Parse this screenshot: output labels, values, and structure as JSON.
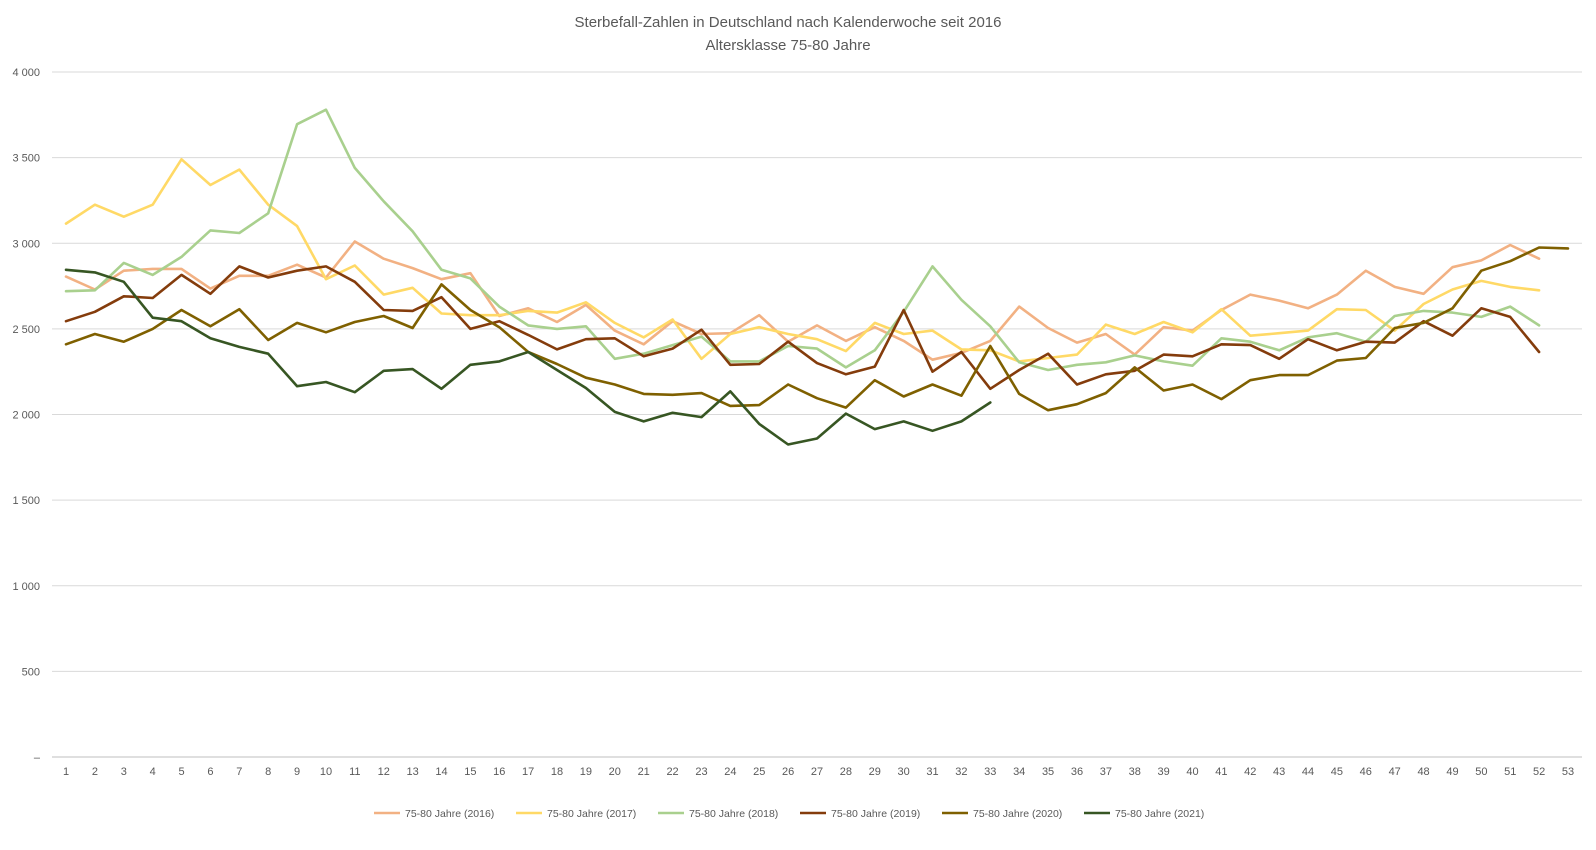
{
  "chart_data": {
    "type": "line",
    "title": "Sterbefall-Zahlen in Deutschland nach Kalenderwoche seit 2016",
    "subtitle": "Altersklasse 75-80 Jahre",
    "xlabel": "",
    "ylabel": "",
    "x": [
      1,
      2,
      3,
      4,
      5,
      6,
      7,
      8,
      9,
      10,
      11,
      12,
      13,
      14,
      15,
      16,
      17,
      18,
      19,
      20,
      21,
      22,
      23,
      24,
      25,
      26,
      27,
      28,
      29,
      30,
      31,
      32,
      33,
      34,
      35,
      36,
      37,
      38,
      39,
      40,
      41,
      42,
      43,
      44,
      45,
      46,
      47,
      48,
      49,
      50,
      51,
      52,
      53
    ],
    "ylim": [
      0,
      4000
    ],
    "yticks": [
      {
        "value": 0,
        "label": "–"
      },
      {
        "value": 500,
        "label": "500"
      },
      {
        "value": 1000,
        "label": "1 000"
      },
      {
        "value": 1500,
        "label": "1 500"
      },
      {
        "value": 2000,
        "label": "2 000"
      },
      {
        "value": 2500,
        "label": "2 500"
      },
      {
        "value": 3000,
        "label": "3 000"
      },
      {
        "value": 3500,
        "label": "3 500"
      },
      {
        "value": 4000,
        "label": "4 000"
      }
    ],
    "grid": true,
    "legend_position": "bottom",
    "series": [
      {
        "name": "75-80 Jahre (2016)",
        "color": "#f2b183",
        "values": [
          2805,
          2730,
          2840,
          2850,
          2850,
          2735,
          2810,
          2810,
          2875,
          2800,
          3010,
          2910,
          2855,
          2790,
          2825,
          2575,
          2620,
          2540,
          2640,
          2490,
          2410,
          2545,
          2470,
          2475,
          2580,
          2425,
          2520,
          2430,
          2510,
          2430,
          2320,
          2360,
          2430,
          2630,
          2505,
          2420,
          2470,
          2350,
          2510,
          2490,
          2610,
          2700,
          2665,
          2620,
          2700,
          2840,
          2745,
          2705,
          2860,
          2900,
          2990,
          2910,
          null
        ]
      },
      {
        "name": "75-80 Jahre (2017)",
        "color": "#ffd966",
        "values": [
          3115,
          3225,
          3155,
          3225,
          3490,
          3340,
          3430,
          3225,
          3100,
          2790,
          2870,
          2700,
          2740,
          2590,
          2580,
          2580,
          2605,
          2595,
          2655,
          2535,
          2450,
          2555,
          2325,
          2470,
          2510,
          2470,
          2440,
          2370,
          2535,
          2470,
          2490,
          2380,
          2375,
          2310,
          2330,
          2350,
          2525,
          2470,
          2540,
          2480,
          2615,
          2460,
          2475,
          2490,
          2615,
          2610,
          2490,
          2645,
          2730,
          2780,
          2745,
          2725,
          null
        ]
      },
      {
        "name": "75-80 Jahre (2018)",
        "color": "#a9d08e",
        "values": [
          2720,
          2725,
          2885,
          2815,
          2920,
          3075,
          3060,
          3175,
          3695,
          3780,
          3440,
          3245,
          3070,
          2845,
          2795,
          2630,
          2520,
          2500,
          2515,
          2325,
          2355,
          2405,
          2455,
          2310,
          2310,
          2400,
          2385,
          2275,
          2375,
          2600,
          2865,
          2670,
          2515,
          2305,
          2260,
          2290,
          2305,
          2345,
          2310,
          2285,
          2445,
          2425,
          2375,
          2450,
          2475,
          2425,
          2575,
          2605,
          2595,
          2570,
          2630,
          2520,
          null
        ]
      },
      {
        "name": "75-80 Jahre (2019)",
        "color": "#843c0c",
        "values": [
          2545,
          2600,
          2690,
          2680,
          2815,
          2705,
          2865,
          2800,
          2840,
          2865,
          2775,
          2610,
          2605,
          2685,
          2500,
          2545,
          2465,
          2380,
          2440,
          2445,
          2340,
          2385,
          2495,
          2290,
          2295,
          2425,
          2300,
          2235,
          2280,
          2610,
          2250,
          2365,
          2150,
          2260,
          2355,
          2175,
          2235,
          2255,
          2350,
          2340,
          2410,
          2405,
          2325,
          2440,
          2375,
          2425,
          2420,
          2545,
          2460,
          2620,
          2570,
          2365,
          null
        ]
      },
      {
        "name": "75-80 Jahre (2020)",
        "color": "#7f6000",
        "values": [
          2410,
          2470,
          2425,
          2500,
          2610,
          2515,
          2615,
          2435,
          2535,
          2480,
          2540,
          2575,
          2505,
          2760,
          2610,
          2510,
          2365,
          2295,
          2215,
          2175,
          2120,
          2115,
          2125,
          2050,
          2055,
          2175,
          2095,
          2040,
          2200,
          2105,
          2175,
          2110,
          2400,
          2120,
          2025,
          2060,
          2125,
          2275,
          2140,
          2175,
          2090,
          2200,
          2230,
          2230,
          2315,
          2330,
          2505,
          2535,
          2620,
          2840,
          2895,
          2975,
          2970
        ]
      },
      {
        "name": "75-80 Jahre (2021)",
        "color": "#375623",
        "values": [
          2845,
          2830,
          2775,
          2565,
          2545,
          2445,
          2395,
          2355,
          2165,
          2190,
          2130,
          2255,
          2265,
          2150,
          2290,
          2310,
          2365,
          2260,
          2155,
          2015,
          1960,
          2010,
          1985,
          2135,
          1945,
          1825,
          1860,
          2005,
          1915,
          1960,
          1905,
          1960,
          2070,
          null,
          null,
          null,
          null,
          null,
          null,
          null,
          null,
          null,
          null,
          null,
          null,
          null,
          null,
          null,
          null,
          null,
          null,
          null,
          null
        ]
      }
    ]
  }
}
